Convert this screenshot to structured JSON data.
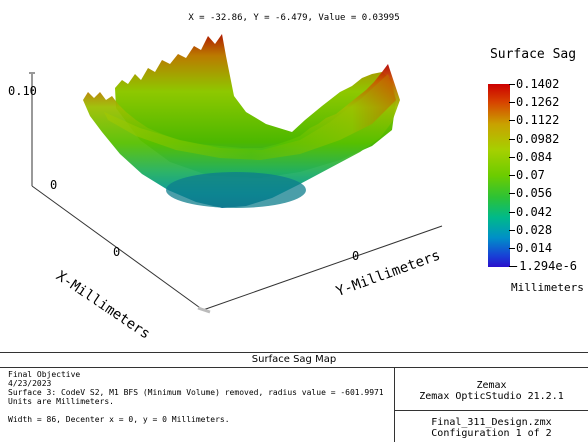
{
  "readout": "X = -32.86, Y = -6.479, Value = 0.03995",
  "colorbar": {
    "title": "Surface Sag",
    "labels": [
      "0.1402",
      "0.1262",
      "0.1122",
      "0.0982",
      "0.084",
      "0.07",
      "0.056",
      "0.042",
      "0.028",
      "0.014",
      "-1.294e-6"
    ],
    "units": "Millimeters"
  },
  "axes": {
    "z_tick_top": "0.10",
    "z_tick_zero": "0",
    "x_tick_zero": "0",
    "y_tick_zero": "0",
    "x_title": "X-Millimeters",
    "y_title": "Y-Millimeters"
  },
  "colors": {
    "sag_high": "#cc0000",
    "sag_mid": "#6ccc00",
    "sag_low": "#2a10cc"
  },
  "footer": {
    "title": "Surface Sag Map",
    "lines": [
      "Final Objective",
      "4/23/2023",
      "Surface 3: CodeV S2, M1 BFS (Minimum Volume) removed, radius value = -601.99711",
      "Units are Millimeters.",
      "",
      "Width = 86, Decenter x = 0, y = 0 Millimeters."
    ],
    "company": "Zemax",
    "product": "Zemax OpticStudio 21.2.1",
    "file": "Final_311_Design.zmx",
    "config": "Configuration 1 of 2"
  }
}
